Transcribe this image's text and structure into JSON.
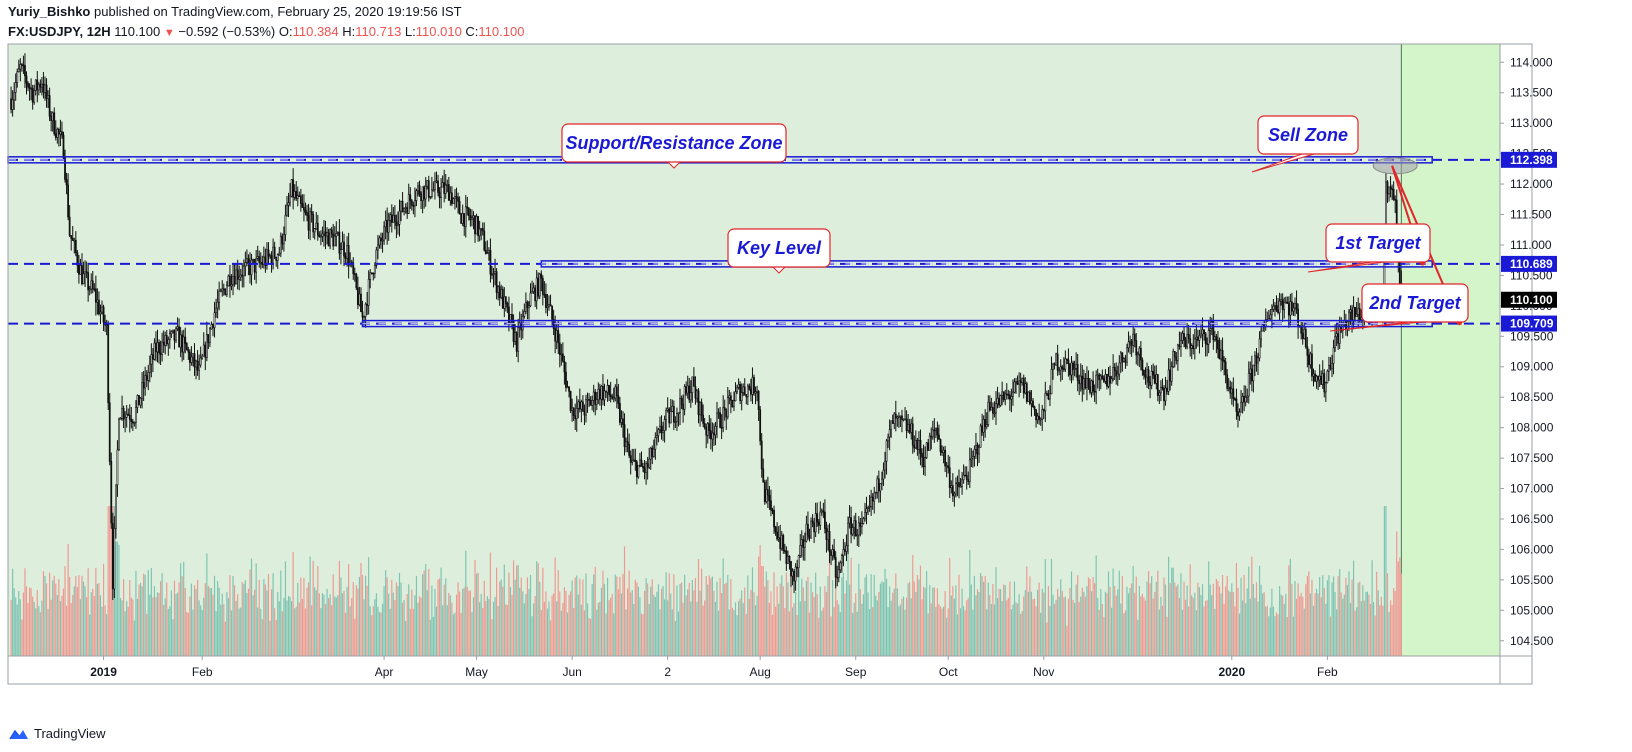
{
  "header": {
    "author": "Yuriy_Bishko",
    "published_text": "published on TradingView.com, February 25, 2020 19:19:56 IST",
    "symbol": "FX:USDJPY, 12H",
    "last": "110.100",
    "change": "−0.592 (−0.53%)",
    "o_label": "O:",
    "o": "110.384",
    "h_label": "H:",
    "h": "110.713",
    "l_label": "L:",
    "l": "110.010",
    "c_label": "C:",
    "c": "110.100"
  },
  "brand": {
    "name": "TradingView"
  },
  "colors": {
    "zone_bg": "#ddefdc",
    "future_bg": "#d4f4c9",
    "level_blue": "#1a1ad6",
    "callout_border": "#e0262b",
    "arrow_red": "#e0262b",
    "vol_up": "#7fc4b3",
    "vol_down": "#ee9a92"
  },
  "chart_data": {
    "type": "candlestick",
    "title": "",
    "xlabel": "",
    "ylabel": "",
    "ylim": [
      104.25,
      114.3
    ],
    "x_ticks": [
      "2019",
      "Feb",
      "Apr",
      "May",
      "Jun",
      "2",
      "Aug",
      "Sep",
      "Oct",
      "Nov",
      "2020",
      "Feb"
    ],
    "y_ticks": [
      "114.000",
      "113.500",
      "113.000",
      "112.500",
      "112.000",
      "111.500",
      "111.000",
      "110.500",
      "110.000",
      "109.500",
      "109.000",
      "108.500",
      "108.000",
      "107.500",
      "107.000",
      "106.500",
      "106.000",
      "105.500",
      "105.000",
      "104.500"
    ],
    "price_path": [
      [
        "2018-12-01",
        113.4
      ],
      [
        "2018-12-04",
        113.9
      ],
      [
        "2018-12-08",
        113.5
      ],
      [
        "2018-12-11",
        113.7
      ],
      [
        "2018-12-14",
        113.1
      ],
      [
        "2018-12-18",
        112.6
      ],
      [
        "2018-12-20",
        111.2
      ],
      [
        "2018-12-24",
        110.5
      ],
      [
        "2018-12-28",
        110.2
      ],
      [
        "2019-01-01",
        109.6
      ],
      [
        "2019-01-03",
        105.5
      ],
      [
        "2019-01-05",
        108.3
      ],
      [
        "2019-01-10",
        108.2
      ],
      [
        "2019-01-17",
        109.3
      ],
      [
        "2019-01-24",
        109.5
      ],
      [
        "2019-01-31",
        108.9
      ],
      [
        "2019-02-05",
        109.9
      ],
      [
        "2019-02-10",
        110.5
      ],
      [
        "2019-02-15",
        110.6
      ],
      [
        "2019-02-20",
        110.7
      ],
      [
        "2019-02-26",
        110.9
      ],
      [
        "2019-03-02",
        111.9
      ],
      [
        "2019-03-06",
        111.5
      ],
      [
        "2019-03-11",
        111.2
      ],
      [
        "2019-03-16",
        111.1
      ],
      [
        "2019-03-20",
        110.9
      ],
      [
        "2019-03-25",
        109.8
      ],
      [
        "2019-03-29",
        110.8
      ],
      [
        "2019-04-02",
        111.3
      ],
      [
        "2019-04-07",
        111.6
      ],
      [
        "2019-04-12",
        111.9
      ],
      [
        "2019-04-17",
        111.9
      ],
      [
        "2019-04-22",
        111.9
      ],
      [
        "2019-04-26",
        111.5
      ],
      [
        "2019-04-30",
        111.4
      ],
      [
        "2019-05-03",
        111.1
      ],
      [
        "2019-05-06",
        110.6
      ],
      [
        "2019-05-10",
        110.0
      ],
      [
        "2019-05-14",
        109.4
      ],
      [
        "2019-05-18",
        110.1
      ],
      [
        "2019-05-22",
        110.4
      ],
      [
        "2019-05-27",
        109.5
      ],
      [
        "2019-06-01",
        108.3
      ],
      [
        "2019-06-05",
        108.3
      ],
      [
        "2019-06-10",
        108.6
      ],
      [
        "2019-06-15",
        108.5
      ],
      [
        "2019-06-20",
        107.4
      ],
      [
        "2019-06-25",
        107.3
      ],
      [
        "2019-07-01",
        108.1
      ],
      [
        "2019-07-05",
        108.3
      ],
      [
        "2019-07-10",
        108.7
      ],
      [
        "2019-07-15",
        107.9
      ],
      [
        "2019-07-20",
        108.2
      ],
      [
        "2019-07-25",
        108.6
      ],
      [
        "2019-07-31",
        108.7
      ],
      [
        "2019-08-02",
        107.0
      ],
      [
        "2019-08-07",
        106.2
      ],
      [
        "2019-08-12",
        105.5
      ],
      [
        "2019-08-16",
        106.3
      ],
      [
        "2019-08-21",
        106.6
      ],
      [
        "2019-08-26",
        105.5
      ],
      [
        "2019-08-30",
        106.4
      ],
      [
        "2019-09-03",
        106.3
      ],
      [
        "2019-09-08",
        107.0
      ],
      [
        "2019-09-13",
        108.1
      ],
      [
        "2019-09-18",
        108.0
      ],
      [
        "2019-09-23",
        107.5
      ],
      [
        "2019-09-27",
        108.0
      ],
      [
        "2019-10-03",
        106.9
      ],
      [
        "2019-10-08",
        107.3
      ],
      [
        "2019-10-14",
        108.3
      ],
      [
        "2019-10-20",
        108.5
      ],
      [
        "2019-10-25",
        108.7
      ],
      [
        "2019-10-31",
        108.1
      ],
      [
        "2019-11-05",
        109.1
      ],
      [
        "2019-11-10",
        109.0
      ],
      [
        "2019-11-15",
        108.7
      ],
      [
        "2019-11-20",
        108.7
      ],
      [
        "2019-11-25",
        109.0
      ],
      [
        "2019-11-30",
        109.5
      ],
      [
        "2019-12-05",
        108.8
      ],
      [
        "2019-12-10",
        108.6
      ],
      [
        "2019-12-15",
        109.4
      ],
      [
        "2019-12-20",
        109.4
      ],
      [
        "2019-12-26",
        109.6
      ],
      [
        "2019-12-31",
        108.7
      ],
      [
        "2020-01-03",
        108.1
      ],
      [
        "2020-01-08",
        109.0
      ],
      [
        "2020-01-13",
        109.9
      ],
      [
        "2020-01-17",
        110.1
      ],
      [
        "2020-01-22",
        109.9
      ],
      [
        "2020-01-27",
        109.0
      ],
      [
        "2020-01-31",
        108.7
      ],
      [
        "2020-02-04",
        109.5
      ],
      [
        "2020-02-08",
        109.8
      ],
      [
        "2020-02-12",
        109.9
      ],
      [
        "2020-02-17",
        109.9
      ],
      [
        "2020-02-19",
        110.0
      ],
      [
        "2020-02-20",
        111.9
      ],
      [
        "2020-02-21",
        112.1
      ],
      [
        "2020-02-23",
        111.6
      ],
      [
        "2020-02-24",
        110.7
      ],
      [
        "2020-02-25",
        110.1
      ]
    ],
    "horizontal_levels": [
      {
        "price": 112.398,
        "label": "112.398",
        "style": "dashed"
      },
      {
        "price": 110.689,
        "label": "110.689",
        "style": "dashed"
      },
      {
        "price": 109.709,
        "label": "109.709",
        "style": "dashed"
      }
    ],
    "last_price": {
      "price": 110.1,
      "label": "110.100"
    },
    "annotations": [
      {
        "text": "Support/Resistance Zone",
        "points_to": 112.398
      },
      {
        "text": "Key Level",
        "points_to": 110.689
      },
      {
        "text": "Sell Zone",
        "points_to": 112.398
      },
      {
        "text": "1st Target",
        "points_to": 110.689
      },
      {
        "text": "2nd Target",
        "points_to": 109.709
      }
    ],
    "arrows": [
      {
        "from": [
          "2020-02-22",
          112.3
        ],
        "to": [
          "2020-03-03",
          110.689
        ]
      },
      {
        "from": [
          "2020-02-22",
          112.3
        ],
        "to": [
          "2020-03-15",
          109.709
        ]
      }
    ],
    "grid": false,
    "volume": "present"
  }
}
